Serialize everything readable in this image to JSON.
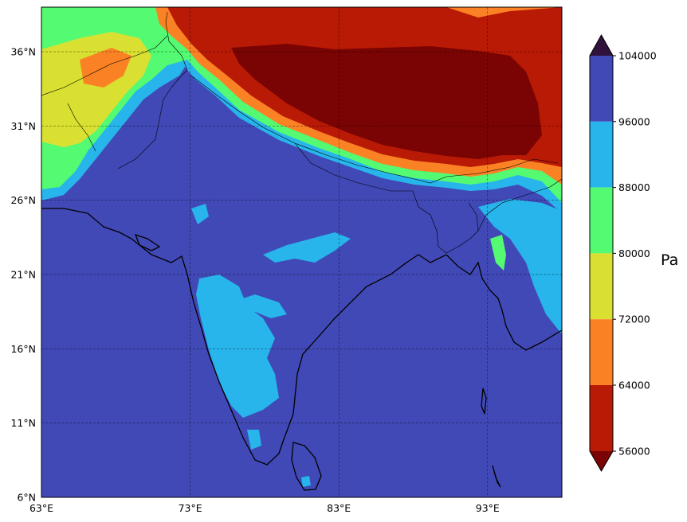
{
  "map": {
    "lat_range": [
      6,
      39
    ],
    "lon_range": [
      63,
      98
    ],
    "lon_ticks": [
      {
        "value": 63,
        "label": "63°E"
      },
      {
        "value": 73,
        "label": "73°E"
      },
      {
        "value": 83,
        "label": "83°E"
      },
      {
        "value": 93,
        "label": "93°E"
      }
    ],
    "lat_ticks": [
      {
        "value": 36,
        "label": "36°N"
      },
      {
        "value": 31,
        "label": "31°N"
      },
      {
        "value": 26,
        "label": "26°N"
      },
      {
        "value": 21,
        "label": "21°N"
      },
      {
        "value": 16,
        "label": "16°N"
      },
      {
        "value": 11,
        "label": "11°N"
      },
      {
        "value": 6,
        "label": "6°N"
      }
    ],
    "gridlines": true,
    "field": "surface pressure (filled contours)"
  },
  "colorbar": {
    "unit": "Pa",
    "extend": "both",
    "levels": [
      {
        "value": 104000,
        "label": "104000"
      },
      {
        "value": 96000,
        "label": "96000"
      },
      {
        "value": 88000,
        "label": "88000"
      },
      {
        "value": 80000,
        "label": "80000"
      },
      {
        "value": 72000,
        "label": "72000"
      },
      {
        "value": 64000,
        "label": "64000"
      },
      {
        "value": 56000,
        "label": "56000"
      }
    ],
    "bands": [
      {
        "range": [
          96000,
          104000
        ],
        "color": "#4149b6"
      },
      {
        "range": [
          88000,
          96000
        ],
        "color": "#27b5eb"
      },
      {
        "range": [
          80000,
          88000
        ],
        "color": "#54fa72"
      },
      {
        "range": [
          72000,
          80000
        ],
        "color": "#d9e032"
      },
      {
        "range": [
          64000,
          72000
        ],
        "color": "#fb8224"
      },
      {
        "range": [
          56000,
          64000
        ],
        "color": "#b81a05"
      }
    ],
    "extend_colors": {
      "over": "#30123b",
      "under": "#7a0403"
    }
  }
}
